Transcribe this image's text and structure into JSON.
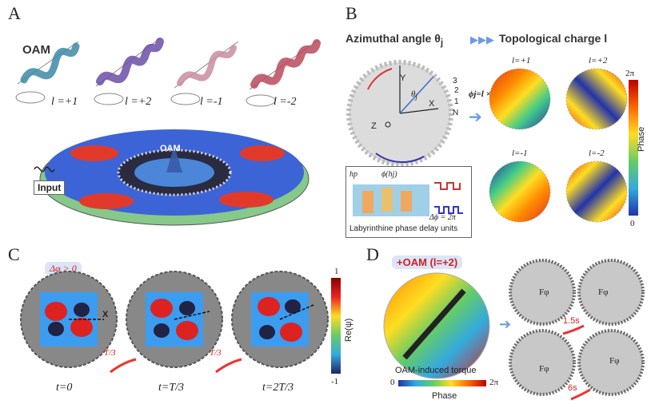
{
  "panels": {
    "a": {
      "label": "A",
      "oam_label": "OAM",
      "helix_labels": [
        "l =+1",
        "l =+2",
        "l =-1",
        "l =-2"
      ],
      "helix_colors": [
        "#3d8aa6",
        "#6c4ea8",
        "#c98da0",
        "#b84a5d"
      ],
      "input_label": "Input",
      "oam_center_label": "OAM"
    },
    "b": {
      "label": "B",
      "azimuthal_title": "Azimuthal angle θ",
      "azimuthal_sub": "j",
      "topo_title": "Topological charge l",
      "axis_y": "Y",
      "axis_x": "X",
      "axis_z": "Z",
      "theta_label": "θ",
      "theta_sub": "j",
      "index_labels": [
        "3",
        "2",
        "1",
        "N"
      ],
      "formula": "ϕj=l × θj",
      "inset_h": "hp",
      "inset_phi": "ϕ(hj)",
      "inset_dphi": "Δϕ = 2π",
      "inset_caption": "Labyrinthine phase delay units",
      "phase_plot_labels": [
        "l=+1",
        "l=+2",
        "l=-1",
        "l=-2"
      ],
      "colorbar_top": "2π",
      "colorbar_bottom": "0",
      "colorbar_label": "Phase"
    },
    "c": {
      "label": "C",
      "badge": "Δφ > 0",
      "x_label": "X",
      "frame_labels": [
        "t=0",
        "t=T/3",
        "t=2T/3"
      ],
      "arrow_labels": [
        "T/3",
        "T/3"
      ],
      "colorbar_top": "1",
      "colorbar_bottom": "-1",
      "colorbar_label": "Re(ψ)"
    },
    "d": {
      "label": "D",
      "badge": "+OAM (l=+2)",
      "torque_label": "OAM-induced torque",
      "colorbar_left": "0",
      "colorbar_right": "2π",
      "colorbar_label": "Phase",
      "force_label": "Fφ",
      "times": [
        "1.5s",
        "6s"
      ]
    }
  }
}
